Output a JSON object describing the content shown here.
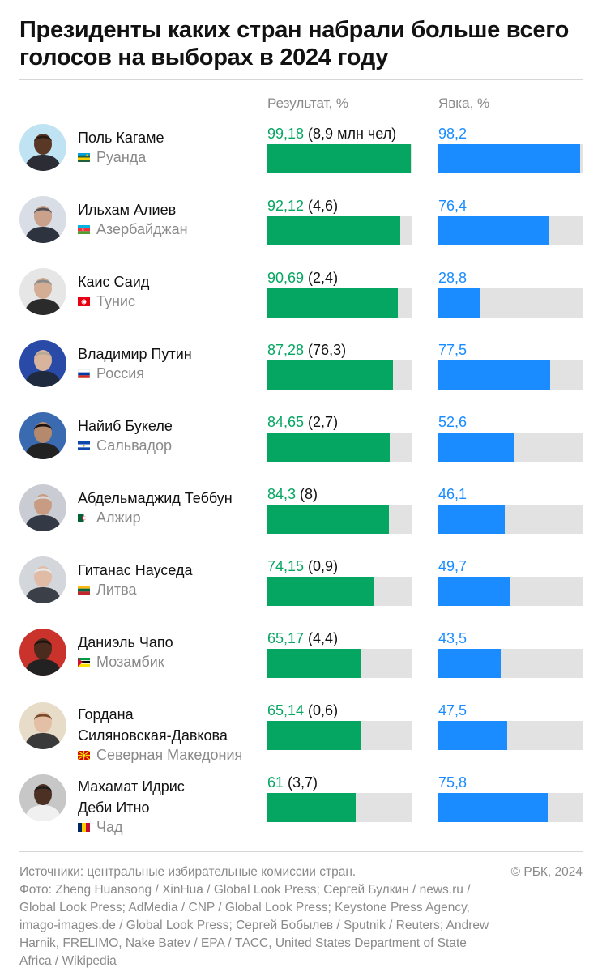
{
  "title": "Президенты каких стран набрали больше всего голосов на выборах в 2024 году",
  "columns": {
    "result": "Результат, %",
    "turnout": "Явка, %"
  },
  "chart_data": {
    "type": "bar",
    "categories": [
      "Поль Кагаме",
      "Ильхам Алиев",
      "Каис Саид",
      "Владимир Путин",
      "Найиб Букеле",
      "Абдельмаджид Теббун",
      "Гитанас Науседа",
      "Даниэль Чапо",
      "Гордана Силяновская-Давкова",
      "Махамат Идрис Деби Итно"
    ],
    "series": [
      {
        "name": "Результат, %",
        "values": [
          99.18,
          92.12,
          90.69,
          87.28,
          84.65,
          84.3,
          74.15,
          65.17,
          65.14,
          61
        ],
        "color": "#05a661"
      },
      {
        "name": "Явка, %",
        "values": [
          98.2,
          76.4,
          28.8,
          77.5,
          52.6,
          46.1,
          49.7,
          43.5,
          47.5,
          75.8
        ],
        "color": "#1a8cff"
      }
    ],
    "xlim": [
      0,
      100
    ]
  },
  "rows": [
    {
      "name_lines": [
        "Поль Кагаме"
      ],
      "country": "Руанда",
      "flag": "rwanda",
      "avatar": "avatar-kagame",
      "result_label": "99,18",
      "votes_label": "(8,9 млн чел)",
      "turnout_label": "98,2"
    },
    {
      "name_lines": [
        "Ильхам Алиев"
      ],
      "country": "Азербайджан",
      "flag": "azerbaijan",
      "avatar": "avatar-aliyev",
      "result_label": "92,12",
      "votes_label": "(4,6)",
      "turnout_label": "76,4"
    },
    {
      "name_lines": [
        "Каис Саид"
      ],
      "country": "Тунис",
      "flag": "tunisia",
      "avatar": "avatar-saied",
      "result_label": "90,69",
      "votes_label": "(2,4)",
      "turnout_label": "28,8"
    },
    {
      "name_lines": [
        "Владимир Путин"
      ],
      "country": "Россия",
      "flag": "russia",
      "avatar": "avatar-putin",
      "result_label": "87,28",
      "votes_label": "(76,3)",
      "turnout_label": "77,5"
    },
    {
      "name_lines": [
        "Найиб Букеле"
      ],
      "country": "Сальвадор",
      "flag": "el-salvador",
      "avatar": "avatar-bukele",
      "result_label": "84,65",
      "votes_label": "(2,7)",
      "turnout_label": "52,6"
    },
    {
      "name_lines": [
        "Абдельмаджид Теббун"
      ],
      "country": "Алжир",
      "flag": "algeria",
      "avatar": "avatar-tebboune",
      "result_label": "84,3",
      "votes_label": "(8)",
      "turnout_label": "46,1"
    },
    {
      "name_lines": [
        "Гитанас Науседа"
      ],
      "country": "Литва",
      "flag": "lithuania",
      "avatar": "avatar-nauseda",
      "result_label": "74,15",
      "votes_label": "(0,9)",
      "turnout_label": "49,7"
    },
    {
      "name_lines": [
        "Даниэль Чапо"
      ],
      "country": "Мозамбик",
      "flag": "mozambique",
      "avatar": "avatar-chapo",
      "result_label": "65,17",
      "votes_label": "(4,4)",
      "turnout_label": "43,5"
    },
    {
      "name_lines": [
        "Гордана",
        "Силяновская-Давкова"
      ],
      "country": "Северная Македония",
      "flag": "north-macedonia",
      "avatar": "avatar-siljanovska",
      "result_label": "65,14",
      "votes_label": "(0,6)",
      "turnout_label": "47,5"
    },
    {
      "name_lines": [
        "Махамат Идрис",
        "Деби Итно"
      ],
      "country": "Чад",
      "flag": "chad",
      "avatar": "avatar-deby",
      "result_label": "61",
      "votes_label": "(3,7)",
      "turnout_label": "75,8"
    }
  ],
  "footer": {
    "sources": "Источники: центральные избирательные комиссии стран.\nФото: Zheng Huansong / XinHua / Global Look Press; Сергей Булкин / news.ru / Global Look Press; AdMedia / CNP / Global Look Press; Keystone Press Agency, imago-images.de / Global Look Press; Сергей Бобылев / Sputnik / Reuters; Andrew Harnik, FRELIMO, Nake Batev / EPA / ТАСС, United States Department of State Africa / Wikipedia",
    "copyright": "© РБК, 2024"
  }
}
